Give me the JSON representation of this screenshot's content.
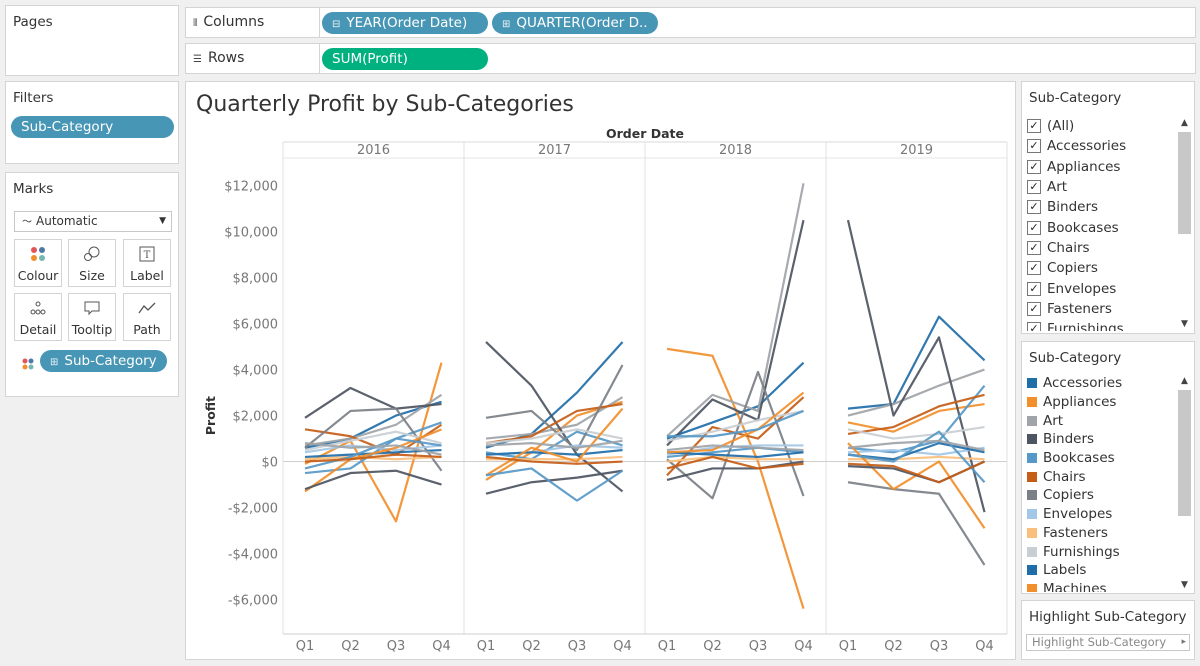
{
  "pages": {
    "title": "Pages"
  },
  "shelves": {
    "columns_label": "Columns",
    "rows_label": "Rows",
    "columns_pills": [
      "YEAR(Order Date)",
      "QUARTER(Order D.."
    ],
    "rows_pill": "SUM(Profit)"
  },
  "filters": {
    "title": "Filters",
    "pill": "Sub-Category"
  },
  "marks": {
    "title": "Marks",
    "type": "Automatic",
    "buttons": [
      "Colour",
      "Size",
      "Label",
      "Detail",
      "Tooltip",
      "Path"
    ],
    "pill": "Sub-Category"
  },
  "filter_card": {
    "title": "Sub-Category",
    "items": [
      "(All)",
      "Accessories",
      "Appliances",
      "Art",
      "Binders",
      "Bookcases",
      "Chairs",
      "Copiers",
      "Envelopes",
      "Fasteners",
      "Furnishings"
    ]
  },
  "legend_card": {
    "title": "Sub-Category",
    "items": [
      {
        "label": "Accessories",
        "color": "#1f6ea8"
      },
      {
        "label": "Appliances",
        "color": "#f28e2b"
      },
      {
        "label": "Art",
        "color": "#a0a4a8"
      },
      {
        "label": "Binders",
        "color": "#4d5562"
      },
      {
        "label": "Bookcases",
        "color": "#5698c7"
      },
      {
        "label": "Chairs",
        "color": "#c65d16"
      },
      {
        "label": "Copiers",
        "color": "#7b8087"
      },
      {
        "label": "Envelopes",
        "color": "#a3c7e6"
      },
      {
        "label": "Fasteners",
        "color": "#fbbf7d"
      },
      {
        "label": "Furnishings",
        "color": "#c9ced3"
      },
      {
        "label": "Labels",
        "color": "#1f6ea8"
      },
      {
        "label": "Machines",
        "color": "#f28e2b"
      }
    ]
  },
  "highlight_card": {
    "title": "Highlight Sub-Category",
    "placeholder": "Highlight Sub-Category"
  },
  "chart_data": {
    "type": "line",
    "title": "Quarterly Profit by Sub-Categories",
    "column_header": "Order Date",
    "ylabel": "Profit",
    "years": [
      "2016",
      "2017",
      "2018",
      "2019"
    ],
    "quarters": [
      "Q1",
      "Q2",
      "Q3",
      "Q4"
    ],
    "ylim": [
      -7500,
      13200
    ],
    "yticks": [
      12000,
      10000,
      8000,
      6000,
      4000,
      2000,
      0,
      -2000,
      -4000,
      -6000
    ],
    "ytick_labels": [
      "$12,000",
      "$10,000",
      "$8,000",
      "$6,000",
      "$4,000",
      "$2,000",
      "$0",
      "-$2,000",
      "-$4,000",
      "-$6,000"
    ],
    "series": [
      {
        "color": "#1f6ea8",
        "values": [
          [
            600,
            1000,
            2000,
            2600
          ],
          [
            600,
            1200,
            3000,
            5200
          ],
          [
            1000,
            1700,
            2400,
            4300
          ],
          [
            2300,
            2500,
            6300,
            4400
          ]
        ]
      },
      {
        "color": "#f28e2b",
        "values": [
          [
            -100,
            900,
            -2600,
            4300
          ],
          [
            -800,
            400,
            2000,
            2600
          ],
          [
            4900,
            4600,
            0,
            -6400
          ],
          [
            1700,
            1300,
            2200,
            2500
          ]
        ]
      },
      {
        "color": "#a0a4a8",
        "values": [
          [
            700,
            1000,
            1600,
            2900
          ],
          [
            1000,
            1200,
            1600,
            2800
          ],
          [
            1100,
            2900,
            2200,
            12100
          ],
          [
            2000,
            2500,
            3300,
            4000
          ]
        ]
      },
      {
        "color": "#4d5562",
        "values": [
          [
            1900,
            3200,
            2300,
            2500
          ],
          [
            5200,
            3300,
            300,
            -1300
          ],
          [
            700,
            2700,
            1800,
            10500
          ],
          [
            10500,
            2000,
            5400,
            -2200
          ]
        ]
      },
      {
        "color": "#5698c7",
        "values": [
          [
            -500,
            -300,
            1000,
            1700
          ],
          [
            400,
            100,
            1300,
            700
          ],
          [
            200,
            400,
            600,
            400
          ],
          [
            600,
            400,
            900,
            3300
          ]
        ]
      },
      {
        "color": "#c65d16",
        "values": [
          [
            1400,
            1100,
            300,
            1600
          ],
          [
            800,
            1100,
            2200,
            2500
          ],
          [
            -600,
            1500,
            1000,
            2800
          ],
          [
            1200,
            1500,
            2400,
            2900
          ]
        ]
      },
      {
        "color": "#7b8087",
        "values": [
          [
            600,
            2200,
            2300,
            -400
          ],
          [
            1900,
            2200,
            500,
            4200
          ],
          [
            100,
            -1600,
            3900,
            -1500
          ],
          [
            -900,
            -1200,
            -1400,
            -4500
          ]
        ]
      },
      {
        "color": "#a3c7e6",
        "values": [
          [
            400,
            700,
            500,
            700
          ],
          [
            300,
            400,
            700,
            600
          ],
          [
            300,
            600,
            700,
            700
          ],
          [
            400,
            500,
            300,
            600
          ]
        ]
      },
      {
        "color": "#fbbf7d",
        "values": [
          [
            100,
            200,
            100,
            200
          ],
          [
            100,
            100,
            100,
            200
          ],
          [
            0,
            200,
            100,
            100
          ],
          [
            100,
            100,
            200,
            100
          ]
        ]
      },
      {
        "color": "#c9ced3",
        "values": [
          [
            500,
            900,
            1300,
            800
          ],
          [
            800,
            1000,
            1400,
            1000
          ],
          [
            900,
            1300,
            1800,
            2200
          ],
          [
            1400,
            1000,
            1200,
            1500
          ]
        ]
      },
      {
        "color": "#1f6ea8",
        "values": [
          [
            200,
            300,
            400,
            500
          ],
          [
            300,
            400,
            300,
            500
          ],
          [
            400,
            300,
            200,
            400
          ],
          [
            300,
            100,
            800,
            400
          ]
        ]
      },
      {
        "color": "#f28e2b",
        "values": [
          [
            -1300,
            100,
            600,
            1400
          ],
          [
            -600,
            600,
            0,
            2300
          ],
          [
            400,
            500,
            1400,
            3000
          ],
          [
            800,
            -1200,
            0,
            -2900
          ]
        ]
      },
      {
        "color": "#4d5562",
        "values": [
          [
            -1200,
            -500,
            -400,
            -1000
          ],
          [
            -1400,
            -900,
            -700,
            -400
          ],
          [
            -800,
            -300,
            -300,
            0
          ],
          [
            -200,
            -300,
            -900,
            0
          ]
        ]
      },
      {
        "color": "#5698c7",
        "values": [
          [
            -300,
            200,
            1000,
            700
          ],
          [
            -600,
            -300,
            -1700,
            -400
          ],
          [
            1100,
            1100,
            1400,
            2200
          ],
          [
            300,
            0,
            1300,
            -900
          ]
        ]
      },
      {
        "color": "#c65d16",
        "values": [
          [
            0,
            100,
            300,
            200
          ],
          [
            200,
            0,
            -100,
            0
          ],
          [
            -300,
            200,
            -300,
            -100
          ],
          [
            -100,
            -200,
            -900,
            0
          ]
        ]
      },
      {
        "color": "#a0a4a8",
        "values": [
          [
            800,
            600,
            700,
            300
          ],
          [
            700,
            800,
            600,
            900
          ],
          [
            500,
            700,
            600,
            500
          ],
          [
            600,
            800,
            900,
            500
          ]
        ]
      }
    ]
  }
}
